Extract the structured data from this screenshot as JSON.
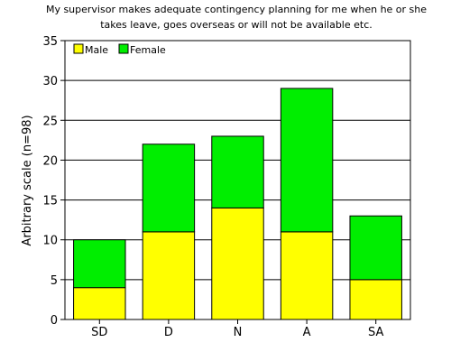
{
  "chart_data": {
    "type": "bar",
    "stacked": true,
    "title_line1": "My supervisor makes adequate contingency planning for me when he or she",
    "title_line2": "takes leave, goes overseas or will not be available etc.",
    "xlabel": "",
    "ylabel": "Arbitrary scale (n=98)",
    "categories": [
      "SD",
      "D",
      "N",
      "A",
      "SA"
    ],
    "series": [
      {
        "name": "Male",
        "color": "#ffff00",
        "values": [
          4,
          11,
          14,
          11,
          5
        ]
      },
      {
        "name": "Female",
        "color": "#00ee00",
        "values": [
          6,
          11,
          9,
          18,
          8
        ]
      }
    ],
    "ylim": [
      0,
      35
    ],
    "yticks": [
      0,
      5,
      10,
      15,
      20,
      25,
      30,
      35
    ],
    "grid": true,
    "legend_placement": "top-left"
  }
}
